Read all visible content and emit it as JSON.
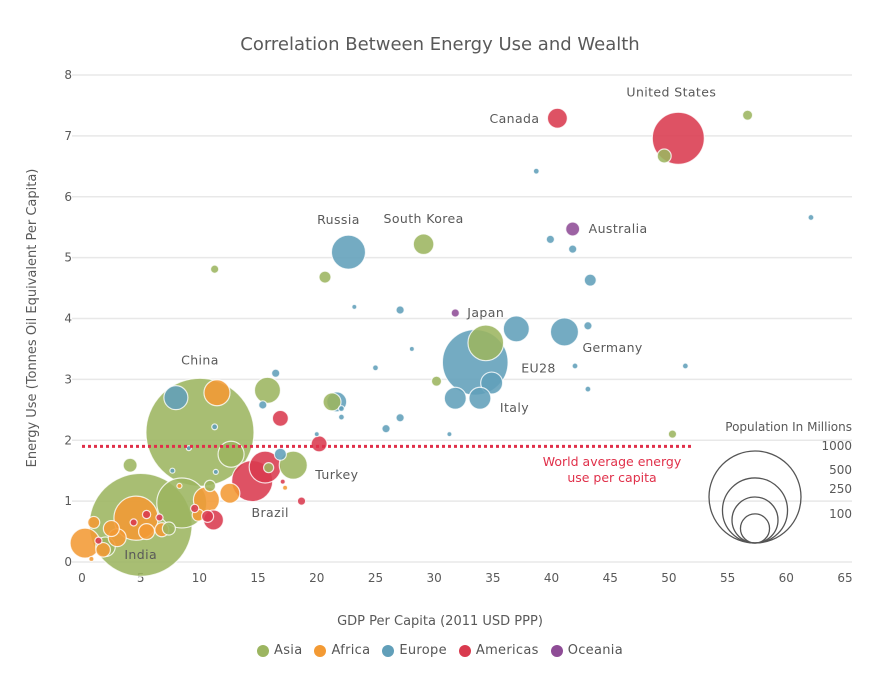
{
  "chart_data": {
    "type": "scatter",
    "title": "Correlation Between Energy Use and Wealth",
    "xlabel": "GDP Per Capita (2011 USD PPP)",
    "ylabel": "Energy Use (Tonnes Oil Equivalent Per Capita)",
    "xlim": [
      0,
      65
    ],
    "ylim": [
      0,
      8
    ],
    "xticks": [
      "0",
      "5",
      "10",
      "15",
      "20",
      "25",
      "30",
      "35",
      "40",
      "45",
      "50",
      "55",
      "60",
      "65"
    ],
    "yticks": [
      "0",
      "1",
      "2",
      "3",
      "4",
      "5",
      "6",
      "7",
      "8"
    ],
    "grid": "horizontal",
    "reference_line": {
      "y": 1.9,
      "x_end": 52,
      "label_line1": "World average energy",
      "label_line2": "use per capita",
      "color": "#e0304a"
    },
    "size_legend": {
      "title": "Population In Millions",
      "values": [
        1000,
        500,
        250,
        100
      ],
      "labels": [
        "1000",
        "500",
        "250",
        "100"
      ]
    },
    "legend": [
      {
        "name": "Asia",
        "color": "#9cb560"
      },
      {
        "name": "Africa",
        "color": "#f39a34"
      },
      {
        "name": "Europe",
        "color": "#619fb9"
      },
      {
        "name": "Americas",
        "color": "#d93a4e"
      },
      {
        "name": "Oceania",
        "color": "#8e4c96"
      }
    ],
    "points": [
      {
        "g": "Europe",
        "x": 33.5,
        "y": 3.28,
        "pop": 510,
        "label": "EU28"
      },
      {
        "g": "Asia",
        "x": 5.0,
        "y": 0.61,
        "pop": 1250,
        "label": "India"
      },
      {
        "g": "Asia",
        "x": 10.05,
        "y": 2.13,
        "pop": 1380,
        "label": "China"
      },
      {
        "g": "Americas",
        "x": 50.8,
        "y": 6.96,
        "pop": 320,
        "label": "United States"
      },
      {
        "g": "Asia",
        "x": 8.5,
        "y": 0.97,
        "pop": 295
      },
      {
        "g": "Africa",
        "x": 4.6,
        "y": 0.72,
        "pop": 230
      },
      {
        "g": "Americas",
        "x": 14.5,
        "y": 1.33,
        "pop": 200,
        "label": "Brazil"
      },
      {
        "g": "Asia",
        "x": 34.4,
        "y": 3.6,
        "pop": 150
      },
      {
        "g": "Europe",
        "x": 22.7,
        "y": 5.09,
        "pop": 137,
        "label": "Russia"
      },
      {
        "g": "Americas",
        "x": 15.6,
        "y": 1.56,
        "pop": 120
      },
      {
        "g": "Africa",
        "x": 0.26,
        "y": 0.31,
        "pop": 106
      },
      {
        "g": "Asia",
        "x": 18.0,
        "y": 1.59,
        "pop": 93,
        "label": "Turkey"
      },
      {
        "g": "Europe",
        "x": 41.1,
        "y": 3.78,
        "pop": 93,
        "label": "Germany"
      },
      {
        "g": "Asia",
        "x": 15.8,
        "y": 2.82,
        "pop": 80
      },
      {
        "g": "Asia",
        "x": 12.7,
        "y": 1.77,
        "pop": 80
      },
      {
        "g": "Africa",
        "x": 11.5,
        "y": 2.78,
        "pop": 80
      },
      {
        "g": "Africa",
        "x": 10.6,
        "y": 1.02,
        "pop": 80
      },
      {
        "g": "Europe",
        "x": 37.0,
        "y": 3.83,
        "pop": 80
      },
      {
        "g": "Europe",
        "x": 8.0,
        "y": 2.7,
        "pop": 68
      },
      {
        "g": "Europe",
        "x": 34.9,
        "y": 2.94,
        "pop": 57
      },
      {
        "g": "Europe",
        "x": 33.9,
        "y": 2.69,
        "pop": 57,
        "label": "Italy"
      },
      {
        "g": "Europe",
        "x": 31.8,
        "y": 2.69,
        "pop": 57
      },
      {
        "g": "Asia",
        "x": 29.1,
        "y": 5.22,
        "pop": 50,
        "label": "South Korea"
      },
      {
        "g": "Africa",
        "x": 12.6,
        "y": 1.13,
        "pop": 47
      },
      {
        "g": "Americas",
        "x": 40.5,
        "y": 7.29,
        "pop": 47,
        "label": "Canada"
      },
      {
        "g": "Americas",
        "x": 11.2,
        "y": 0.69,
        "pop": 47
      },
      {
        "g": "Europe",
        "x": 21.7,
        "y": 2.63,
        "pop": 47
      },
      {
        "g": "Asia",
        "x": 21.3,
        "y": 2.63,
        "pop": 38
      },
      {
        "g": "Africa",
        "x": 3.0,
        "y": 0.4,
        "pop": 38
      },
      {
        "g": "Americas",
        "x": 16.9,
        "y": 2.36,
        "pop": 30
      },
      {
        "g": "Americas",
        "x": 20.2,
        "y": 1.94,
        "pop": 30
      },
      {
        "g": "Asia",
        "x": 2.0,
        "y": 0.25,
        "pop": 45
      },
      {
        "g": "Asia",
        "x": 4.1,
        "y": 1.59,
        "pop": 23
      },
      {
        "g": "Asia",
        "x": 49.6,
        "y": 6.67,
        "pop": 23
      },
      {
        "g": "Oceania",
        "x": 41.8,
        "y": 5.47,
        "pop": 23,
        "label": "Australia"
      },
      {
        "g": "Africa",
        "x": 2.5,
        "y": 0.55,
        "pop": 30
      },
      {
        "g": "Africa",
        "x": 1.8,
        "y": 0.2,
        "pop": 25
      },
      {
        "g": "Africa",
        "x": 5.5,
        "y": 0.5,
        "pop": 30
      },
      {
        "g": "Africa",
        "x": 6.8,
        "y": 0.53,
        "pop": 23
      },
      {
        "g": "Asia",
        "x": 20.7,
        "y": 4.68,
        "pop": 17
      },
      {
        "g": "Europe",
        "x": 43.3,
        "y": 4.63,
        "pop": 17
      },
      {
        "g": "Europe",
        "x": 16.9,
        "y": 1.77,
        "pop": 17
      },
      {
        "g": "Asia",
        "x": 7.4,
        "y": 0.55,
        "pop": 20
      },
      {
        "g": "Asia",
        "x": 10.9,
        "y": 1.25,
        "pop": 15
      },
      {
        "g": "Africa",
        "x": 1.0,
        "y": 0.65,
        "pop": 17
      },
      {
        "g": "Africa",
        "x": 9.9,
        "y": 0.77,
        "pop": 17
      },
      {
        "g": "Americas",
        "x": 10.7,
        "y": 0.75,
        "pop": 17
      },
      {
        "g": "Asia",
        "x": 56.7,
        "y": 7.34,
        "pop": 12
      },
      {
        "g": "Asia",
        "x": 30.2,
        "y": 2.97,
        "pop": 12
      },
      {
        "g": "Asia",
        "x": 15.9,
        "y": 1.55,
        "pop": 12
      },
      {
        "g": "Europe",
        "x": 39.9,
        "y": 5.3,
        "pop": 8
      },
      {
        "g": "Europe",
        "x": 41.8,
        "y": 5.14,
        "pop": 8
      },
      {
        "g": "Europe",
        "x": 27.1,
        "y": 4.14,
        "pop": 8
      },
      {
        "g": "Europe",
        "x": 43.1,
        "y": 3.88,
        "pop": 8
      },
      {
        "g": "Europe",
        "x": 16.5,
        "y": 3.1,
        "pop": 8
      },
      {
        "g": "Europe",
        "x": 15.4,
        "y": 2.58,
        "pop": 8
      },
      {
        "g": "Europe",
        "x": 27.1,
        "y": 2.37,
        "pop": 8
      },
      {
        "g": "Europe",
        "x": 25.9,
        "y": 2.19,
        "pop": 8
      },
      {
        "g": "Asia",
        "x": 11.3,
        "y": 4.81,
        "pop": 8
      },
      {
        "g": "Asia",
        "x": 50.3,
        "y": 2.1,
        "pop": 8
      },
      {
        "g": "Oceania",
        "x": 31.8,
        "y": 4.09,
        "pop": 8,
        "label": "Japan"
      },
      {
        "g": "Americas",
        "x": 18.7,
        "y": 1.0,
        "pop": 8
      },
      {
        "g": "Americas",
        "x": 5.5,
        "y": 0.78,
        "pop": 8
      },
      {
        "g": "Americas",
        "x": 4.4,
        "y": 0.65,
        "pop": 6
      },
      {
        "g": "Americas",
        "x": 1.4,
        "y": 0.35,
        "pop": 6
      },
      {
        "g": "Americas",
        "x": 9.6,
        "y": 0.88,
        "pop": 8
      },
      {
        "g": "Americas",
        "x": 6.6,
        "y": 0.73,
        "pop": 6
      },
      {
        "g": "Europe",
        "x": 38.7,
        "y": 6.42,
        "pop": 4
      },
      {
        "g": "Europe",
        "x": 62.1,
        "y": 5.66,
        "pop": 4
      },
      {
        "g": "Europe",
        "x": 25.0,
        "y": 3.19,
        "pop": 4
      },
      {
        "g": "Europe",
        "x": 42.0,
        "y": 3.22,
        "pop": 4
      },
      {
        "g": "Europe",
        "x": 51.4,
        "y": 3.22,
        "pop": 4
      },
      {
        "g": "Europe",
        "x": 43.1,
        "y": 2.84,
        "pop": 4
      },
      {
        "g": "Europe",
        "x": 22.1,
        "y": 2.52,
        "pop": 4
      },
      {
        "g": "Europe",
        "x": 22.1,
        "y": 2.38,
        "pop": 4
      },
      {
        "g": "Europe",
        "x": 11.3,
        "y": 2.22,
        "pop": 4
      },
      {
        "g": "Europe",
        "x": 7.7,
        "y": 1.5,
        "pop": 2
      },
      {
        "g": "Europe",
        "x": 11.4,
        "y": 1.48,
        "pop": 3
      },
      {
        "g": "Europe",
        "x": 9.1,
        "y": 1.87,
        "pop": 2
      },
      {
        "g": "Europe",
        "x": 23.2,
        "y": 4.19,
        "pop": 2
      },
      {
        "g": "Europe",
        "x": 28.1,
        "y": 3.5,
        "pop": 2
      },
      {
        "g": "Europe",
        "x": 31.3,
        "y": 2.1,
        "pop": 2
      },
      {
        "g": "Europe",
        "x": 20.0,
        "y": 2.1,
        "pop": 2
      },
      {
        "g": "Africa",
        "x": 8.3,
        "y": 1.25,
        "pop": 3
      },
      {
        "g": "Africa",
        "x": 17.3,
        "y": 1.22,
        "pop": 3
      },
      {
        "g": "Africa",
        "x": 0.8,
        "y": 0.05,
        "pop": 3
      },
      {
        "g": "Americas",
        "x": 17.1,
        "y": 1.32,
        "pop": 3
      }
    ]
  }
}
